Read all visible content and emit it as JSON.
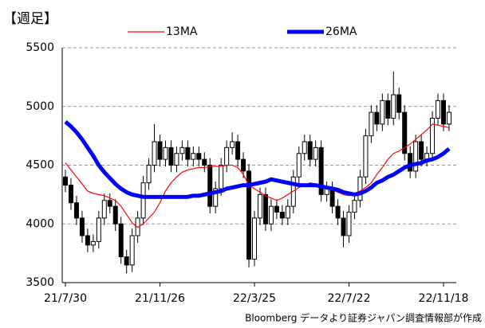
{
  "chart_data": {
    "type": "candlestick",
    "title": "【週足】",
    "source": "Bloomberg データより証券ジャパン調査情報部が作成",
    "categories": [
      "21/7/30",
      null,
      null,
      null,
      null,
      null,
      null,
      null,
      null,
      null,
      null,
      null,
      null,
      null,
      null,
      null,
      null,
      "21/11/26",
      null,
      null,
      null,
      null,
      null,
      null,
      null,
      null,
      null,
      null,
      null,
      null,
      null,
      null,
      null,
      null,
      "22/3/25",
      null,
      null,
      null,
      null,
      null,
      null,
      null,
      null,
      null,
      null,
      null,
      null,
      null,
      null,
      null,
      null,
      "22/7/22",
      null,
      null,
      null,
      null,
      null,
      null,
      null,
      null,
      null,
      null,
      null,
      null,
      null,
      null,
      null,
      null,
      "22/11/18",
      null
    ],
    "open": [
      4400,
      4330,
      4180,
      4050,
      3900,
      3820,
      3850,
      4050,
      4200,
      4150,
      4000,
      3720,
      3650,
      3900,
      4050,
      4350,
      4500,
      4700,
      4550,
      4650,
      4500,
      4600,
      4650,
      4550,
      4600,
      4550,
      4500,
      4150,
      4300,
      4500,
      4650,
      4700,
      4550,
      4450,
      3700,
      4050,
      4250,
      4000,
      4150,
      4100,
      4050,
      4150,
      4400,
      4600,
      4700,
      4550,
      4650,
      4250,
      4300,
      4150,
      4050,
      3900,
      4100,
      4200,
      4400,
      4750,
      4950,
      4850,
      5050,
      4900,
      5100,
      4950,
      4600,
      4450,
      4700,
      4550,
      4600,
      4900,
      5050,
      4850
    ],
    "high": [
      4460,
      4390,
      4240,
      4110,
      3960,
      3910,
      4110,
      4260,
      4260,
      4210,
      4060,
      3780,
      3960,
      4110,
      4410,
      4560,
      4850,
      4760,
      4710,
      4710,
      4660,
      4710,
      4710,
      4660,
      4660,
      4610,
      4560,
      4360,
      4560,
      4710,
      4780,
      4760,
      4610,
      4510,
      4110,
      4310,
      4310,
      4210,
      4210,
      4160,
      4210,
      4460,
      4660,
      4760,
      4760,
      4710,
      4710,
      4360,
      4360,
      4210,
      4110,
      4160,
      4260,
      4460,
      4810,
      5010,
      5010,
      5110,
      5110,
      5300,
      5160,
      5010,
      4660,
      4760,
      4760,
      4660,
      4960,
      5110,
      5110,
      5010
    ],
    "low": [
      4270,
      4120,
      3990,
      3840,
      3760,
      3760,
      3790,
      3990,
      4090,
      3940,
      3660,
      3580,
      3590,
      3840,
      3990,
      4290,
      4440,
      4490,
      4490,
      4440,
      4440,
      4540,
      4490,
      4490,
      4490,
      4440,
      4090,
      4090,
      4240,
      4440,
      4590,
      4490,
      4390,
      3630,
      3640,
      3990,
      3940,
      3940,
      4040,
      3990,
      3990,
      4090,
      4340,
      4540,
      4490,
      4490,
      4190,
      4190,
      4090,
      3990,
      3800,
      3840,
      4040,
      4140,
      4340,
      4690,
      4790,
      4790,
      4840,
      4840,
      4890,
      4540,
      4390,
      4390,
      4490,
      4490,
      4540,
      4840,
      4790,
      4790
    ],
    "close": [
      4330,
      4180,
      4050,
      3900,
      3820,
      3850,
      4050,
      4200,
      4150,
      4000,
      3720,
      3650,
      3900,
      4050,
      4350,
      4500,
      4700,
      4550,
      4650,
      4500,
      4600,
      4650,
      4550,
      4600,
      4550,
      4500,
      4150,
      4300,
      4500,
      4650,
      4700,
      4550,
      4450,
      3700,
      4050,
      4250,
      4000,
      4150,
      4100,
      4050,
      4150,
      4400,
      4600,
      4700,
      4550,
      4650,
      4250,
      4300,
      4150,
      4050,
      3900,
      4100,
      4200,
      4400,
      4750,
      4950,
      4850,
      5050,
      4900,
      5100,
      4950,
      4600,
      4450,
      4700,
      4550,
      4600,
      4900,
      5050,
      4850,
      4950
    ],
    "series": [
      {
        "name": "13MA",
        "color": "#ff0000",
        "values": [
          4520,
          4460,
          4400,
          4340,
          4280,
          4260,
          4250,
          4240,
          4220,
          4200,
          4150,
          4080,
          4010,
          3970,
          4000,
          4050,
          4100,
          4180,
          4280,
          4350,
          4400,
          4440,
          4460,
          4470,
          4480,
          4480,
          4490,
          4490,
          4490,
          4500,
          4500,
          4480,
          4420,
          4330,
          4300,
          4270,
          4240,
          4220,
          4200,
          4220,
          4250,
          4280,
          4310,
          4330,
          4350,
          4340,
          4330,
          4310,
          4290,
          4270,
          4250,
          4240,
          4260,
          4280,
          4310,
          4350,
          4420,
          4480,
          4550,
          4600,
          4620,
          4650,
          4680,
          4720,
          4760,
          4800,
          4850,
          4840,
          4830,
          4820
        ]
      },
      {
        "name": "26MA",
        "color": "#0000ff",
        "values": [
          4870,
          4830,
          4780,
          4720,
          4650,
          4580,
          4500,
          4440,
          4390,
          4340,
          4300,
          4270,
          4250,
          4240,
          4230,
          4230,
          4230,
          4230,
          4230,
          4230,
          4230,
          4230,
          4230,
          4240,
          4240,
          4250,
          4260,
          4270,
          4280,
          4300,
          4310,
          4320,
          4330,
          4330,
          4340,
          4350,
          4360,
          4380,
          4370,
          4360,
          4350,
          4340,
          4330,
          4330,
          4330,
          4330,
          4320,
          4310,
          4300,
          4290,
          4270,
          4260,
          4250,
          4260,
          4280,
          4310,
          4350,
          4370,
          4400,
          4420,
          4450,
          4480,
          4500,
          4510,
          4520,
          4540,
          4550,
          4570,
          4600,
          4640
        ]
      }
    ],
    "ylim": [
      3500,
      5500
    ],
    "yticks": [
      3500,
      4000,
      4500,
      5000,
      5500
    ],
    "grid": true
  }
}
